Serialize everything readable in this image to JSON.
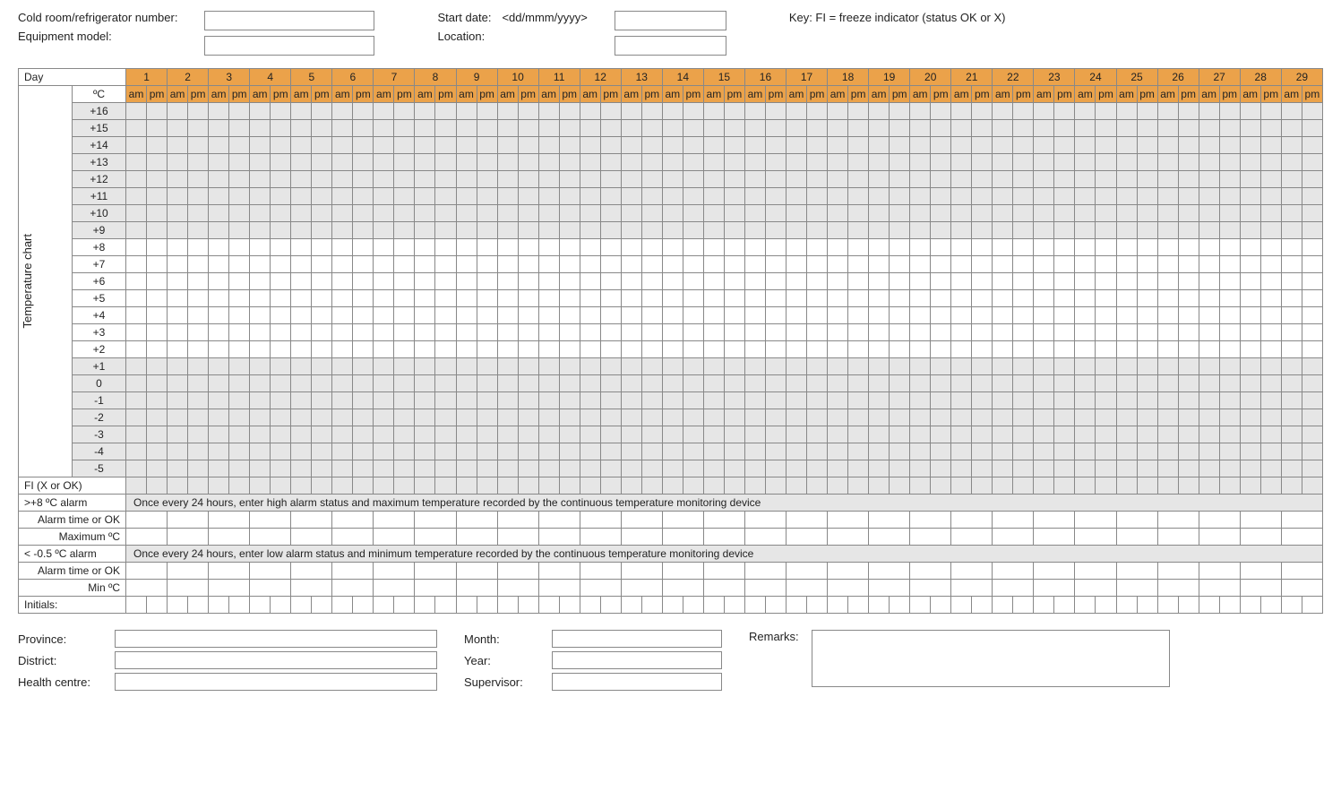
{
  "header": {
    "cold_room_label": "Cold room/refrigerator number:",
    "equipment_model_label": "Equipment model:",
    "start_date_label": "Start date:",
    "start_date_placeholder": "<dd/mmm/yyyy>",
    "location_label": "Location:",
    "key_label": "Key:   FI = freeze indicator  (status OK or X)"
  },
  "chart": {
    "day_label": "Day",
    "celsius_label": "ºC",
    "vertical_label": "Temperature chart",
    "num_days": 29,
    "am_label": "am",
    "pm_label": "pm",
    "header_bg": "#eba24a",
    "shaded_bg": "#e6e6e6",
    "temp_rows": [
      {
        "label": "+16",
        "shaded": true
      },
      {
        "label": "+15",
        "shaded": true
      },
      {
        "label": "+14",
        "shaded": true
      },
      {
        "label": "+13",
        "shaded": true
      },
      {
        "label": "+12",
        "shaded": true
      },
      {
        "label": "+11",
        "shaded": true
      },
      {
        "label": "+10",
        "shaded": true
      },
      {
        "label": "+9",
        "shaded": true
      },
      {
        "label": "+8",
        "shaded": false
      },
      {
        "label": "+7",
        "shaded": false
      },
      {
        "label": "+6",
        "shaded": false
      },
      {
        "label": "+5",
        "shaded": false
      },
      {
        "label": "+4",
        "shaded": false
      },
      {
        "label": "+3",
        "shaded": false
      },
      {
        "label": "+2",
        "shaded": false
      },
      {
        "label": "+1",
        "shaded": true
      },
      {
        "label": "0",
        "shaded": true
      },
      {
        "label": "-1",
        "shaded": true
      },
      {
        "label": "-2",
        "shaded": true
      },
      {
        "label": "-3",
        "shaded": true
      },
      {
        "label": "-4",
        "shaded": true
      },
      {
        "label": "-5",
        "shaded": true
      }
    ],
    "fi_row_label": "FI (X or OK)",
    "high_alarm_label": ">+8 ºC alarm",
    "high_alarm_banner": "Once every 24 hours, enter high alarm status and maximum temperature recorded by the continuous temperature monitoring device",
    "alarm_time_label": "Alarm time or OK",
    "maximum_label": "Maximum ºC",
    "low_alarm_label": "< -0.5 ºC alarm",
    "low_alarm_banner": "Once every 24 hours, enter low alarm status and minimum temperature recorded by the continuous temperature monitoring device",
    "min_label": "Min ºC",
    "initials_label": "Initials:"
  },
  "footer": {
    "province_label": "Province:",
    "district_label": "District:",
    "health_centre_label": "Health centre:",
    "month_label": "Month:",
    "year_label": "Year:",
    "supervisor_label": "Supervisor:",
    "remarks_label": "Remarks:"
  }
}
